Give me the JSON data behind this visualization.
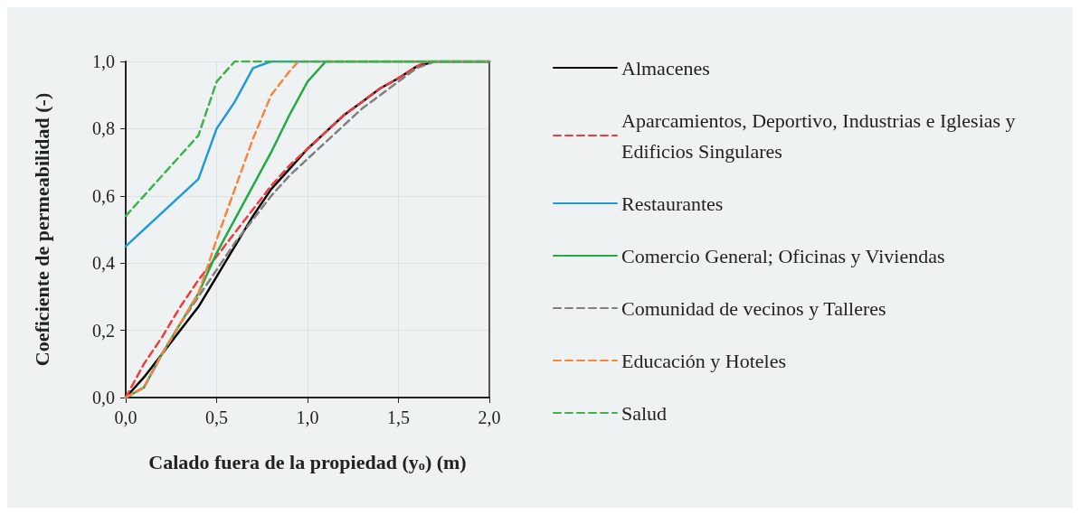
{
  "chart_data": {
    "type": "line",
    "xlabel": "Calado fuera de la propiedad (y$_{o}$) (m)",
    "ylabel": "Coeficiente de permeabilidad (-)",
    "xlim": [
      0,
      2
    ],
    "ylim": [
      0,
      1
    ],
    "xticks": [
      {
        "value": 0,
        "label": "0,0"
      },
      {
        "value": 0.5,
        "label": "0,5"
      },
      {
        "value": 1,
        "label": "1,0"
      },
      {
        "value": 1.5,
        "label": "1,5"
      },
      {
        "value": 2,
        "label": "2,0"
      }
    ],
    "yticks": [
      {
        "value": 0,
        "label": "0,0"
      },
      {
        "value": 0.2,
        "label": "0,2"
      },
      {
        "value": 0.4,
        "label": "0,4"
      },
      {
        "value": 0.6,
        "label": "0,6"
      },
      {
        "value": 0.8,
        "label": "0,8"
      },
      {
        "value": 1,
        "label": "1,0"
      }
    ],
    "grid": true,
    "legend": "right",
    "marker": "none",
    "series": [
      {
        "name": "Almacenes",
        "color": "#000000",
        "line_style": "solid",
        "x": [
          0,
          0.1,
          0.2,
          0.3,
          0.4,
          0.5,
          0.6,
          0.7,
          0.8,
          0.9,
          1.0,
          1.1,
          1.2,
          1.3,
          1.4,
          1.5,
          1.6,
          1.7,
          2.0
        ],
        "values": [
          0,
          0.06,
          0.13,
          0.2,
          0.27,
          0.36,
          0.45,
          0.54,
          0.62,
          0.68,
          0.74,
          0.79,
          0.84,
          0.88,
          0.92,
          0.95,
          0.985,
          1,
          1
        ]
      },
      {
        "name": "Aparcamientos, Deportivo, Industrias e Iglesias y Edificios Singulares",
        "color": "#f03c3c",
        "line_style": "dashed",
        "x": [
          0,
          0.1,
          0.2,
          0.3,
          0.4,
          0.5,
          0.6,
          0.7,
          0.8,
          0.9,
          1.0,
          1.1,
          1.2,
          1.3,
          1.4,
          1.5,
          1.6,
          1.65,
          2.0
        ],
        "values": [
          0,
          0.1,
          0.18,
          0.27,
          0.35,
          0.42,
          0.49,
          0.56,
          0.63,
          0.69,
          0.74,
          0.79,
          0.84,
          0.88,
          0.92,
          0.95,
          0.985,
          1,
          1
        ]
      },
      {
        "name": "Restaurantes",
        "color": "#1f9bd6",
        "line_style": "solid",
        "x": [
          0,
          0.4,
          0.5,
          0.6,
          0.7,
          0.8,
          2.0
        ],
        "values": [
          0.45,
          0.65,
          0.8,
          0.88,
          0.98,
          1,
          1
        ]
      },
      {
        "name": "Comercio General; Oficinas y Viviendas",
        "color": "#22aa44",
        "line_style": "solid",
        "x": [
          0,
          0.1,
          0.2,
          0.3,
          0.4,
          0.5,
          0.6,
          0.7,
          0.8,
          0.9,
          1.0,
          1.1,
          2.0
        ],
        "values": [
          0,
          0.03,
          0.13,
          0.22,
          0.31,
          0.43,
          0.53,
          0.63,
          0.73,
          0.84,
          0.94,
          1,
          1
        ]
      },
      {
        "name": "Comunidad de vecinos y Talleres",
        "color": "#808080",
        "line_style": "dashed",
        "x": [
          0,
          0.1,
          0.2,
          0.3,
          0.4,
          0.5,
          0.6,
          0.7,
          0.8,
          0.9,
          1.0,
          1.1,
          1.2,
          1.3,
          1.4,
          1.5,
          1.6,
          1.7,
          2.0
        ],
        "values": [
          0,
          0.03,
          0.13,
          0.22,
          0.3,
          0.38,
          0.46,
          0.53,
          0.6,
          0.66,
          0.71,
          0.76,
          0.81,
          0.86,
          0.9,
          0.94,
          0.98,
          1,
          1
        ]
      },
      {
        "name": "Educación y Hoteles",
        "color": "#f5853f",
        "line_style": "dashed",
        "x": [
          0,
          0.1,
          0.2,
          0.3,
          0.4,
          0.5,
          0.6,
          0.7,
          0.8,
          0.9,
          0.95,
          2.0
        ],
        "values": [
          0,
          0.03,
          0.13,
          0.22,
          0.31,
          0.47,
          0.62,
          0.77,
          0.9,
          0.97,
          1,
          1
        ]
      },
      {
        "name": "Salud",
        "color": "#3cb44b",
        "line_style": "dashed",
        "x": [
          0,
          0.1,
          0.2,
          0.3,
          0.4,
          0.5,
          0.6,
          2.0
        ],
        "values": [
          0.54,
          0.6,
          0.66,
          0.72,
          0.78,
          0.94,
          1,
          1
        ]
      }
    ]
  }
}
